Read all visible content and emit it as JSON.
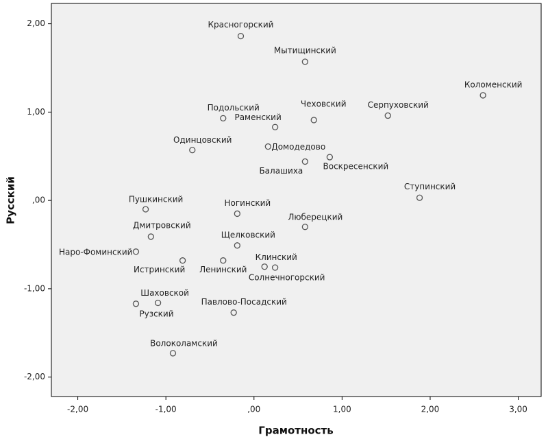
{
  "chart_data": {
    "type": "scatter",
    "x_label": "Грамотность",
    "y_label": "Русский",
    "xlim": [
      -2.3,
      3.26
    ],
    "ylim": [
      -2.22,
      2.23
    ],
    "xticks": [
      {
        "value": -2,
        "label": "-2,00"
      },
      {
        "value": -1,
        "label": "-1,00"
      },
      {
        "value": 0,
        "label": ",00"
      },
      {
        "value": 1,
        "label": "1,00"
      },
      {
        "value": 2,
        "label": "2,00"
      },
      {
        "value": 3,
        "label": "3,00"
      }
    ],
    "yticks": [
      {
        "value": -2,
        "label": "-2,00"
      },
      {
        "value": -1,
        "label": "-1,00"
      },
      {
        "value": 0,
        "label": ",00"
      },
      {
        "value": 1,
        "label": "1,00"
      },
      {
        "value": 2,
        "label": "2,00"
      }
    ],
    "labels": [
      "Красногорский",
      "Мытищинский",
      "Коломенский",
      "Подольский",
      "Чеховский",
      "Серпуховский",
      "Раменский",
      "Одинцовский",
      "Домодедово",
      "Балашиха",
      "Воскресенский",
      "Ступинский",
      "Пушкинский",
      "Ногинский",
      "Люберецкий",
      "Дмитровский",
      "Щелковский",
      "Наро-Фоминский",
      "Истринский",
      "Ленинский",
      "Клинский",
      "Солнечногорский",
      "Шаховской",
      "Рузский",
      "Павлово-Посадский",
      "Волоколамский"
    ],
    "x": [
      -0.15,
      0.58,
      2.6,
      -0.35,
      0.68,
      1.52,
      0.24,
      -0.7,
      0.16,
      0.58,
      0.86,
      1.88,
      -1.23,
      -0.19,
      0.58,
      -1.17,
      -0.19,
      -1.34,
      -0.81,
      -0.35,
      0.12,
      0.24,
      -1.09,
      -1.34,
      -0.23,
      -0.92
    ],
    "values": [
      1.86,
      1.57,
      1.19,
      0.93,
      0.91,
      0.96,
      0.83,
      0.57,
      0.61,
      0.44,
      0.49,
      0.03,
      -0.1,
      -0.15,
      -0.3,
      -0.41,
      -0.51,
      -0.58,
      -0.68,
      -0.68,
      -0.75,
      -0.76,
      -1.16,
      -1.17,
      -1.27,
      -1.73
    ],
    "color": "#555555",
    "background": "#f0f0f0"
  }
}
